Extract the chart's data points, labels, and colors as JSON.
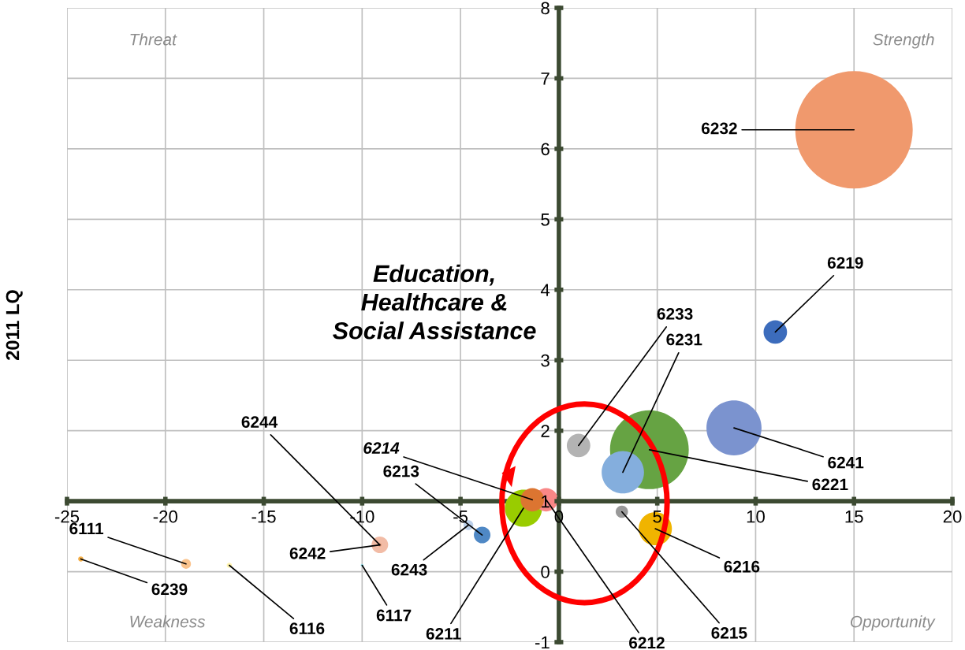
{
  "chart_data": {
    "type": "bubble",
    "ylabel": "2011 LQ",
    "xlim": [
      -25,
      20
    ],
    "xticks": [
      -25,
      -20,
      -15,
      -10,
      -5,
      0,
      5,
      10,
      15,
      20
    ],
    "ylim": [
      -1,
      8
    ],
    "yticks": [
      -1,
      0,
      1,
      2,
      3,
      4,
      5,
      6,
      7,
      8
    ],
    "grid": true,
    "legend": false,
    "annotations": [
      "Threat",
      "Strength",
      "Weakness",
      "Opportunity",
      "Education, Healthcare & Social Assistance"
    ],
    "series": [
      {
        "name": "6232",
        "color": "#f0996d",
        "x": [
          15.0
        ],
        "values": [
          6.27
        ],
        "sizes": [
          1
        ]
      },
      {
        "name": "6219",
        "color": "#3c6cbc",
        "x": [
          11.0
        ],
        "values": [
          3.4
        ],
        "sizes": [
          0.04
        ]
      },
      {
        "name": "6241",
        "color": "#7b93cf",
        "x": [
          8.9
        ],
        "values": [
          2.04
        ],
        "sizes": [
          0.22
        ]
      },
      {
        "name": "6221",
        "color": "#66a343",
        "x": [
          4.6
        ],
        "values": [
          1.73
        ],
        "sizes": [
          0.45
        ]
      },
      {
        "name": "6231",
        "color": "#84aedd",
        "x": [
          3.25
        ],
        "values": [
          1.41
        ],
        "sizes": [
          0.13
        ]
      },
      {
        "name": "6233",
        "color": "#b3b3b3",
        "x": [
          1.0
        ],
        "values": [
          1.79
        ],
        "sizes": [
          0.04
        ]
      },
      {
        "name": "6216",
        "color": "#f0b400",
        "x": [
          4.9
        ],
        "values": [
          0.61
        ],
        "sizes": [
          0.08
        ]
      },
      {
        "name": "6215",
        "color": "#999999",
        "x": [
          3.2
        ],
        "values": [
          0.85
        ],
        "sizes": [
          0.011
        ]
      },
      {
        "name": "6211",
        "color": "#99cc00",
        "x": [
          -1.8
        ],
        "values": [
          0.9
        ],
        "sizes": [
          0.1
        ]
      },
      {
        "name": "6212",
        "color": "#f98787",
        "x": [
          -0.65
        ],
        "values": [
          1.02
        ],
        "sizes": [
          0.04
        ]
      },
      {
        "name": "6214",
        "color": "#dc7531",
        "x": [
          -1.35
        ],
        "values": [
          1.02
        ],
        "sizes": [
          0.04
        ]
      },
      {
        "name": "6213",
        "color": "#4f88c5",
        "x": [
          -3.9
        ],
        "values": [
          0.52
        ],
        "sizes": [
          0.02
        ]
      },
      {
        "name": "6243",
        "color": "#bcd0ea",
        "x": [
          -4.6
        ],
        "values": [
          0.66
        ],
        "sizes": [
          0.007
        ]
      },
      {
        "name": "6242",
        "color": "#f2bca6",
        "x": [
          -9.1
        ],
        "values": [
          0.38
        ],
        "sizes": [
          0.02
        ]
      },
      {
        "name": "6244",
        "color": "#e8a080",
        "x": [
          -9.1
        ],
        "values": [
          0.38
        ],
        "sizes": [
          0.001
        ]
      },
      {
        "name": "6117",
        "color": "#9fe5f0",
        "x": [
          -10.0
        ],
        "values": [
          0.09
        ],
        "sizes": [
          0.0006
        ]
      },
      {
        "name": "6116",
        "color": "#fff4b0",
        "x": [
          -16.75
        ],
        "values": [
          0.09
        ],
        "sizes": [
          0.002
        ]
      },
      {
        "name": "6111",
        "color": "#fac38d",
        "x": [
          -18.95
        ],
        "values": [
          0.11
        ],
        "sizes": [
          0.007
        ]
      },
      {
        "name": "6239",
        "color": "#f6b04a",
        "x": [
          -24.3
        ],
        "values": [
          0.18
        ],
        "sizes": [
          0.002
        ]
      }
    ]
  }
}
